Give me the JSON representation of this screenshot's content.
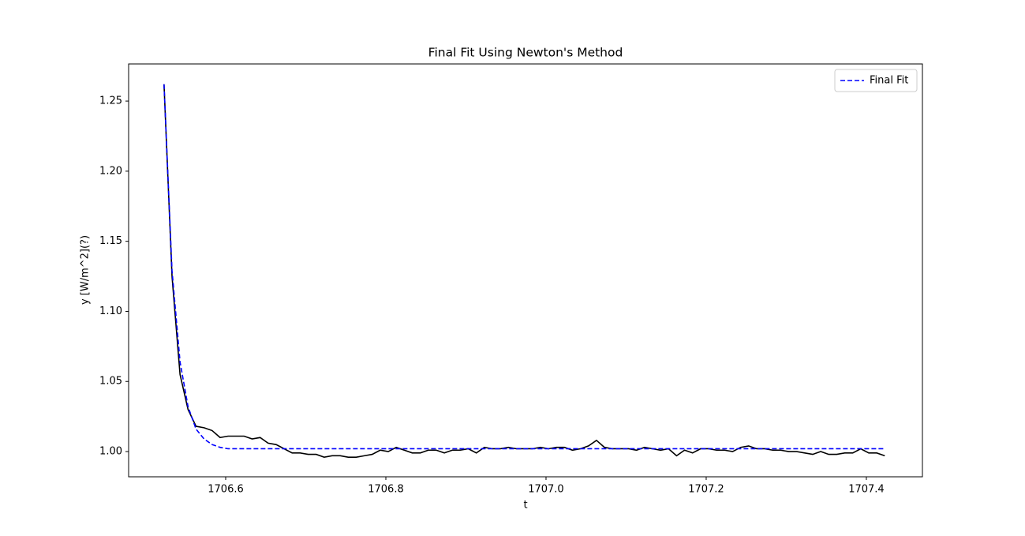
{
  "chart_data": {
    "type": "line",
    "title": "Final Fit Using Newton's Method",
    "x_label": "t",
    "y_label": "y [W/m^2](?)",
    "x": [
      1706.523,
      1706.533,
      1706.543,
      1706.553,
      1706.563,
      1706.573,
      1706.583,
      1706.593,
      1706.603,
      1706.613,
      1706.623,
      1706.633,
      1706.643,
      1706.653,
      1706.663,
      1706.673,
      1706.683,
      1706.693,
      1706.703,
      1706.713,
      1706.723,
      1706.733,
      1706.743,
      1706.753,
      1706.763,
      1706.773,
      1706.783,
      1706.793,
      1706.803,
      1706.813,
      1706.823,
      1706.833,
      1706.843,
      1706.853,
      1706.863,
      1706.873,
      1706.883,
      1706.893,
      1706.903,
      1706.913,
      1706.923,
      1706.933,
      1706.943,
      1706.953,
      1706.963,
      1706.973,
      1706.983,
      1706.993,
      1707.003,
      1707.013,
      1707.023,
      1707.033,
      1707.043,
      1707.053,
      1707.063,
      1707.073,
      1707.083,
      1707.093,
      1707.103,
      1707.113,
      1707.123,
      1707.133,
      1707.143,
      1707.153,
      1707.163,
      1707.173,
      1707.183,
      1707.193,
      1707.203,
      1707.213,
      1707.223,
      1707.233,
      1707.243,
      1707.253,
      1707.263,
      1707.273,
      1707.283,
      1707.293,
      1707.303,
      1707.313,
      1707.323,
      1707.333,
      1707.343,
      1707.353,
      1707.363,
      1707.373,
      1707.383,
      1707.393,
      1707.403,
      1707.413,
      1707.423
    ],
    "series": [
      {
        "color": "#000000",
        "linestyle": "solid",
        "values": [
          1.262,
          1.125,
          1.055,
          1.03,
          1.018,
          1.017,
          1.015,
          1.01,
          1.011,
          1.011,
          1.011,
          1.009,
          1.01,
          1.006,
          1.005,
          1.002,
          0.999,
          0.999,
          0.998,
          0.998,
          0.996,
          0.997,
          0.997,
          0.996,
          0.996,
          0.997,
          0.998,
          1.001,
          1.0,
          1.003,
          1.001,
          0.999,
          0.999,
          1.001,
          1.001,
          0.999,
          1.001,
          1.001,
          1.002,
          0.999,
          1.003,
          1.002,
          1.002,
          1.003,
          1.002,
          1.002,
          1.002,
          1.003,
          1.002,
          1.003,
          1.003,
          1.001,
          1.002,
          1.004,
          1.008,
          1.003,
          1.002,
          1.002,
          1.002,
          1.001,
          1.003,
          1.002,
          1.001,
          1.002,
          0.997,
          1.001,
          0.999,
          1.002,
          1.002,
          1.001,
          1.001,
          1.0,
          1.003,
          1.004,
          1.002,
          1.002,
          1.001,
          1.001,
          1.0,
          1.0,
          0.999,
          0.998,
          1.0,
          0.998,
          0.998,
          0.999,
          0.999,
          1.002,
          0.999,
          0.999,
          0.997
        ]
      },
      {
        "name": "Final Fit",
        "color": "#0000ff",
        "linestyle": "dashed",
        "values": [
          1.262,
          1.129,
          1.064,
          1.032,
          1.016,
          1.009,
          1.005,
          1.003,
          1.002,
          1.002,
          1.002,
          1.002,
          1.002,
          1.002,
          1.002,
          1.002,
          1.002,
          1.002,
          1.002,
          1.002,
          1.002,
          1.002,
          1.002,
          1.002,
          1.002,
          1.002,
          1.002,
          1.002,
          1.002,
          1.002,
          1.002,
          1.002,
          1.002,
          1.002,
          1.002,
          1.002,
          1.002,
          1.002,
          1.002,
          1.002,
          1.002,
          1.002,
          1.002,
          1.002,
          1.002,
          1.002,
          1.002,
          1.002,
          1.002,
          1.002,
          1.002,
          1.002,
          1.002,
          1.002,
          1.002,
          1.002,
          1.002,
          1.002,
          1.002,
          1.002,
          1.002,
          1.002,
          1.002,
          1.002,
          1.002,
          1.002,
          1.002,
          1.002,
          1.002,
          1.002,
          1.002,
          1.002,
          1.002,
          1.002,
          1.002,
          1.002,
          1.002,
          1.002,
          1.002,
          1.002,
          1.002,
          1.002,
          1.002,
          1.002,
          1.002,
          1.002,
          1.002,
          1.002,
          1.002,
          1.002,
          1.002
        ]
      }
    ],
    "xlim": [
      1706.4788,
      1707.47
    ],
    "xticks": [
      {
        "value": 1706.6,
        "label": "1706.6"
      },
      {
        "value": 1706.8,
        "label": "1706.8"
      },
      {
        "value": 1707.0,
        "label": "1707.0"
      },
      {
        "value": 1707.2,
        "label": "1707.2"
      },
      {
        "value": 1707.4,
        "label": "1707.4"
      }
    ],
    "ylim": [
      0.982,
      1.2765
    ],
    "yticks": [
      {
        "value": 1.0,
        "label": "1.00"
      },
      {
        "value": 1.05,
        "label": "1.05"
      },
      {
        "value": 1.1,
        "label": "1.10"
      },
      {
        "value": 1.15,
        "label": "1.15"
      },
      {
        "value": 1.2,
        "label": "1.20"
      },
      {
        "value": 1.25,
        "label": "1.25"
      }
    ],
    "grid": false,
    "legend": "upper right"
  }
}
